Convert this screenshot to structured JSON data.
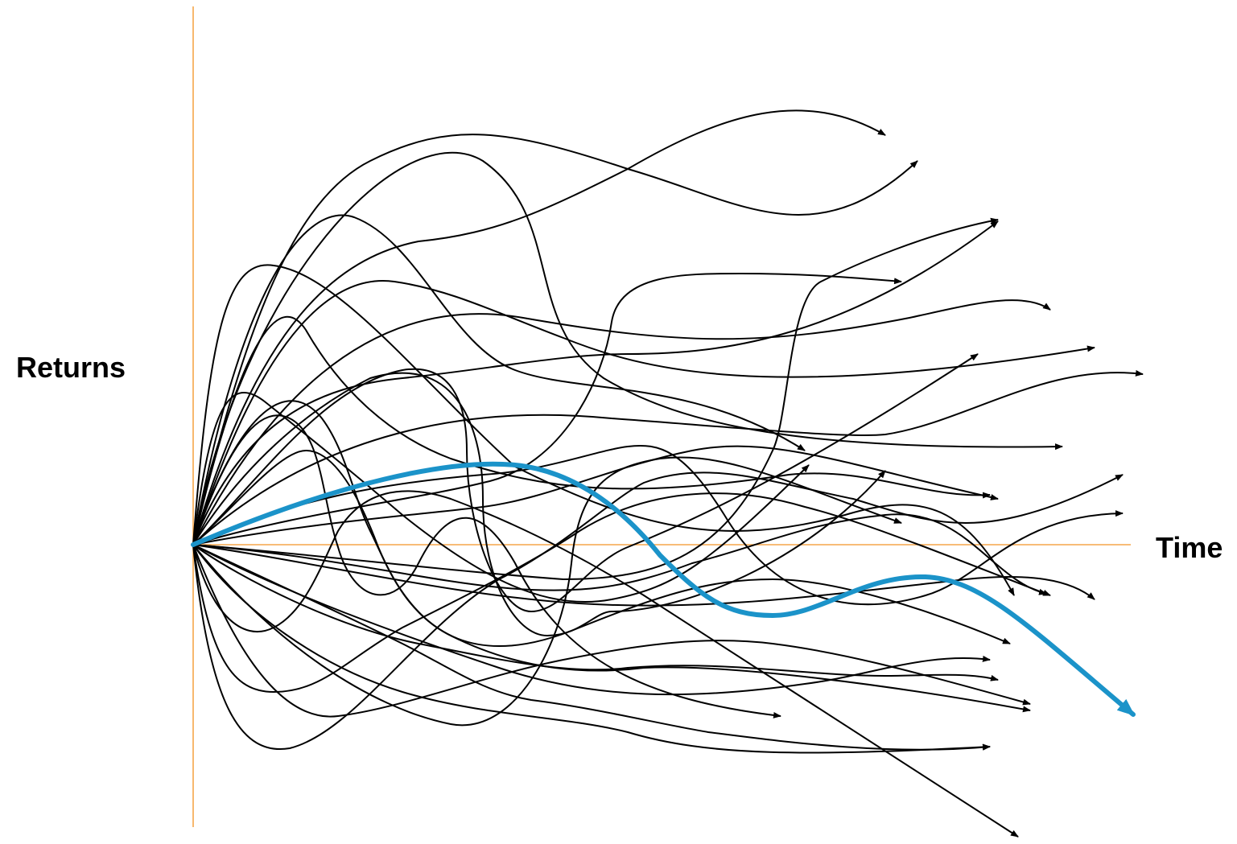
{
  "labels": {
    "y_axis": "Returns",
    "x_axis": "Time"
  },
  "colors": {
    "axis": "#F5A64A",
    "path": "#000000",
    "highlight": "#1B93C9",
    "background": "#FFFFFF"
  },
  "diagram": {
    "type": "random-walk paths",
    "path_count": 31,
    "highlighted_path_count": 1
  }
}
